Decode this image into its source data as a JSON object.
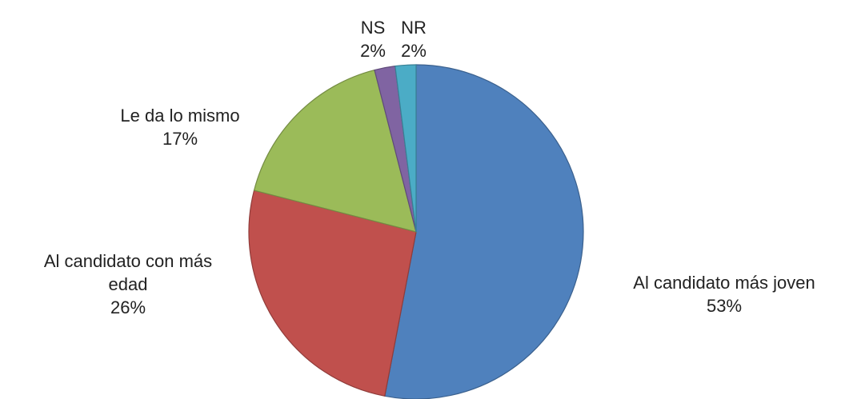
{
  "chart_data": {
    "type": "pie",
    "categories": [
      "Al candidato más joven",
      "Al candidato con más edad",
      "Le da lo mismo",
      "NS",
      "NR"
    ],
    "values": [
      53,
      26,
      17,
      2,
      2
    ],
    "value_labels": [
      "53%",
      "26%",
      "17%",
      "2%",
      "2%"
    ],
    "colors": [
      "#4f81bd",
      "#c0504d",
      "#9bbb59",
      "#8064a2",
      "#4bacc6"
    ]
  }
}
